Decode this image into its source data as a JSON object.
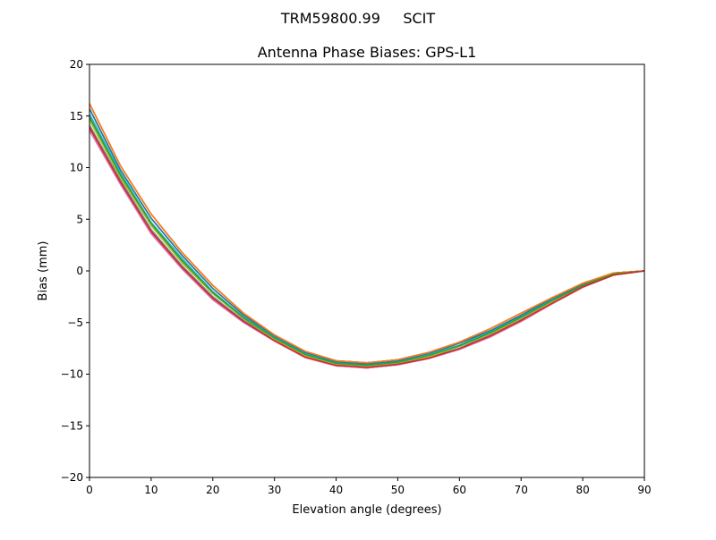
{
  "chart_data": {
    "type": "line",
    "suptitle": "TRM59800.99     SCIT",
    "title": "Antenna Phase Biases: GPS-L1",
    "xlabel": "Elevation angle (degrees)",
    "ylabel": "Bias (mm)",
    "xlim": [
      0,
      90
    ],
    "ylim": [
      -20,
      20
    ],
    "xticks": [
      0,
      10,
      20,
      30,
      40,
      50,
      60,
      70,
      80,
      90
    ],
    "yticks": [
      -20,
      -15,
      -10,
      -5,
      0,
      5,
      10,
      15,
      20
    ],
    "grid": false,
    "x": [
      0,
      5,
      10,
      15,
      20,
      25,
      30,
      35,
      40,
      45,
      50,
      55,
      60,
      65,
      70,
      75,
      80,
      85,
      90
    ],
    "colors": [
      "#1f77b4",
      "#ff7f0e",
      "#2ca02c",
      "#d62728",
      "#9467bd",
      "#8c564b",
      "#e377c2",
      "#7f7f7f",
      "#bcbd22",
      "#17becf"
    ],
    "series": [
      {
        "values": [
          13.6,
          8.4,
          3.6,
          0.2,
          -2.8,
          -5.0,
          -6.8,
          -8.4,
          -9.2,
          -9.4,
          -9.1,
          -8.5,
          -7.6,
          -6.4,
          -4.9,
          -3.2,
          -1.6,
          -0.4,
          0
        ]
      },
      {
        "values": [
          14.1,
          8.8,
          4.0,
          0.5,
          -2.5,
          -4.8,
          -6.7,
          -8.3,
          -9.1,
          -9.3,
          -9.0,
          -8.4,
          -7.5,
          -6.2,
          -4.7,
          -3.1,
          -1.5,
          -0.4,
          0
        ]
      },
      {
        "values": [
          14.6,
          9.1,
          4.4,
          0.8,
          -2.2,
          -4.6,
          -6.6,
          -8.2,
          -9.0,
          -9.2,
          -8.9,
          -8.3,
          -7.3,
          -6.1,
          -4.6,
          -3.0,
          -1.4,
          -0.3,
          0
        ]
      },
      {
        "values": [
          15.2,
          9.5,
          4.7,
          1.2,
          -2.0,
          -4.5,
          -6.4,
          -8.0,
          -8.9,
          -9.1,
          -8.8,
          -8.1,
          -7.2,
          -5.9,
          -4.4,
          -2.8,
          -1.4,
          -0.3,
          0
        ]
      },
      {
        "values": [
          15.7,
          9.8,
          5.1,
          1.5,
          -1.7,
          -4.3,
          -6.3,
          -7.9,
          -8.8,
          -9.0,
          -8.7,
          -8.0,
          -7.0,
          -5.8,
          -4.3,
          -2.7,
          -1.3,
          -0.2,
          0
        ]
      },
      {
        "values": [
          16.2,
          10.2,
          5.5,
          1.8,
          -1.4,
          -4.1,
          -6.2,
          -7.8,
          -8.7,
          -8.9,
          -8.6,
          -7.9,
          -6.9,
          -5.6,
          -4.1,
          -2.6,
          -1.2,
          -0.2,
          0
        ]
      },
      {
        "values": [
          14.9,
          9.3,
          4.6,
          1.0,
          -2.1,
          -4.55,
          -6.5,
          -8.1,
          -8.95,
          -9.15,
          -8.85,
          -8.2,
          -7.25,
          -6.0,
          -4.5,
          -2.9,
          -1.4,
          -0.3,
          0
        ]
      },
      {
        "values": [
          13.9,
          8.6,
          3.8,
          0.35,
          -2.65,
          -4.9,
          -6.75,
          -8.35,
          -9.15,
          -9.35,
          -9.05,
          -8.45,
          -7.55,
          -6.3,
          -4.8,
          -3.15,
          -1.55,
          -0.4,
          0
        ]
      }
    ]
  }
}
